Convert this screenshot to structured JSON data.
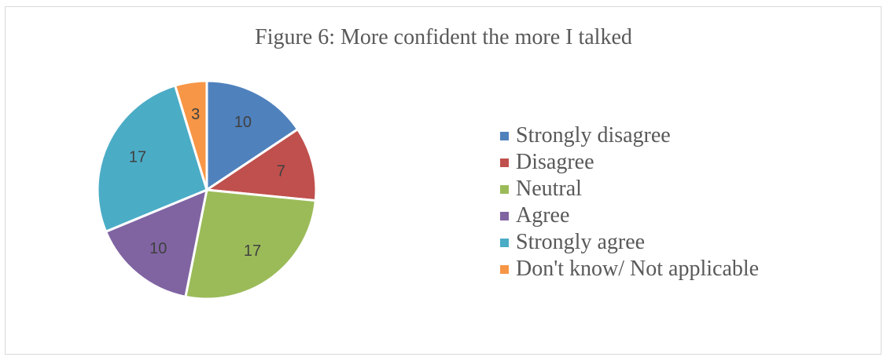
{
  "chart_data": {
    "type": "pie",
    "title": "Figure 6: More confident the more I talked",
    "categories": [
      "Strongly disagree",
      "Disagree",
      "Neutral",
      "Agree",
      "Strongly agree",
      "Don't know/ Not applicable"
    ],
    "values": [
      10,
      7,
      17,
      10,
      17,
      3
    ],
    "colors": [
      "#4f81bd",
      "#c0504d",
      "#9bbb59",
      "#8064a2",
      "#4bacc6",
      "#f79646"
    ],
    "legend_position": "right",
    "data_labels": true
  }
}
